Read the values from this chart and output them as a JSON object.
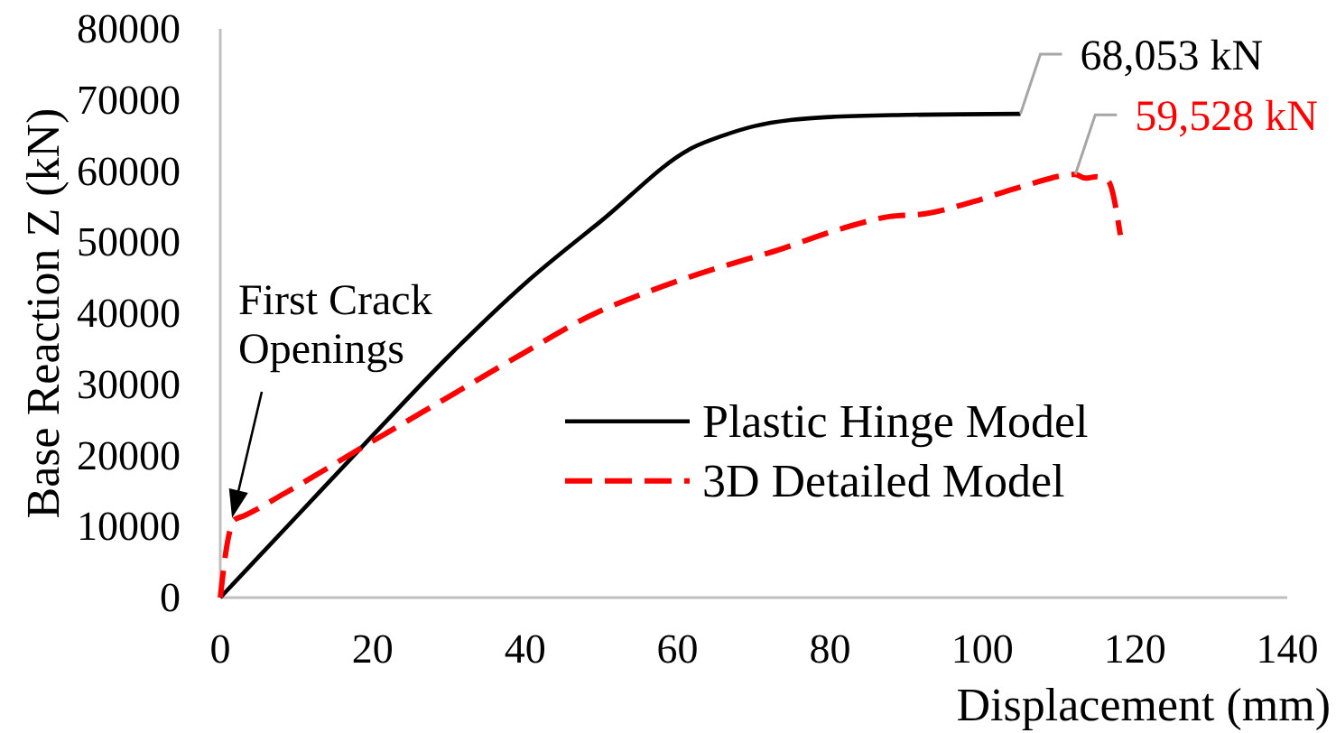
{
  "chart_data": {
    "type": "line",
    "xlabel": "Displacement (mm)",
    "ylabel": "Base Reaction Z (kN)",
    "xlim": [
      0,
      140
    ],
    "xticks": [
      0,
      20,
      40,
      60,
      80,
      100,
      120,
      140
    ],
    "ylim": [
      0,
      80000
    ],
    "yticks": [
      0,
      10000,
      20000,
      30000,
      40000,
      50000,
      60000,
      70000,
      80000
    ],
    "legend": "right",
    "series": [
      {
        "name": "Plastic Hinge Model",
        "color": "#000000",
        "line_style": "solid",
        "x": [
          0,
          10,
          20,
          30,
          40,
          50,
          62,
          66,
          70,
          75,
          80,
          90,
          105
        ],
        "values": [
          0,
          11400,
          22800,
          34000,
          44200,
          53000,
          63300,
          65000,
          66300,
          67200,
          67600,
          67900,
          68053
        ],
        "value_labels": [
          null,
          null,
          null,
          null,
          null,
          null,
          null,
          null,
          null,
          null,
          null,
          null,
          "68,053 kN"
        ]
      },
      {
        "name": "3D Detailed Model",
        "color": "#ff0000",
        "line_style": "dashed",
        "x": [
          0,
          0.9,
          1.8,
          3.1,
          8.5,
          19.2,
          29.1,
          39.8,
          49.6,
          53.9,
          61.3,
          69.4,
          72,
          81.5,
          87.8,
          92.5,
          98.8,
          105.1,
          112.2,
          113.5,
          115,
          116.5,
          118.1
        ],
        "values": [
          0,
          7500,
          10900,
          11500,
          14700,
          21500,
          27700,
          34400,
          40200,
          42100,
          45000,
          47700,
          48500,
          51900,
          53600,
          54000,
          55700,
          57800,
          59528,
          59000,
          59200,
          58600,
          51000
        ],
        "value_labels": [
          null,
          null,
          null,
          null,
          null,
          null,
          null,
          null,
          null,
          null,
          null,
          null,
          null,
          null,
          null,
          null,
          null,
          null,
          "59,528 kN",
          null,
          null,
          null,
          null
        ]
      }
    ],
    "annotations": [
      "First Crack\nOpenings"
    ]
  }
}
